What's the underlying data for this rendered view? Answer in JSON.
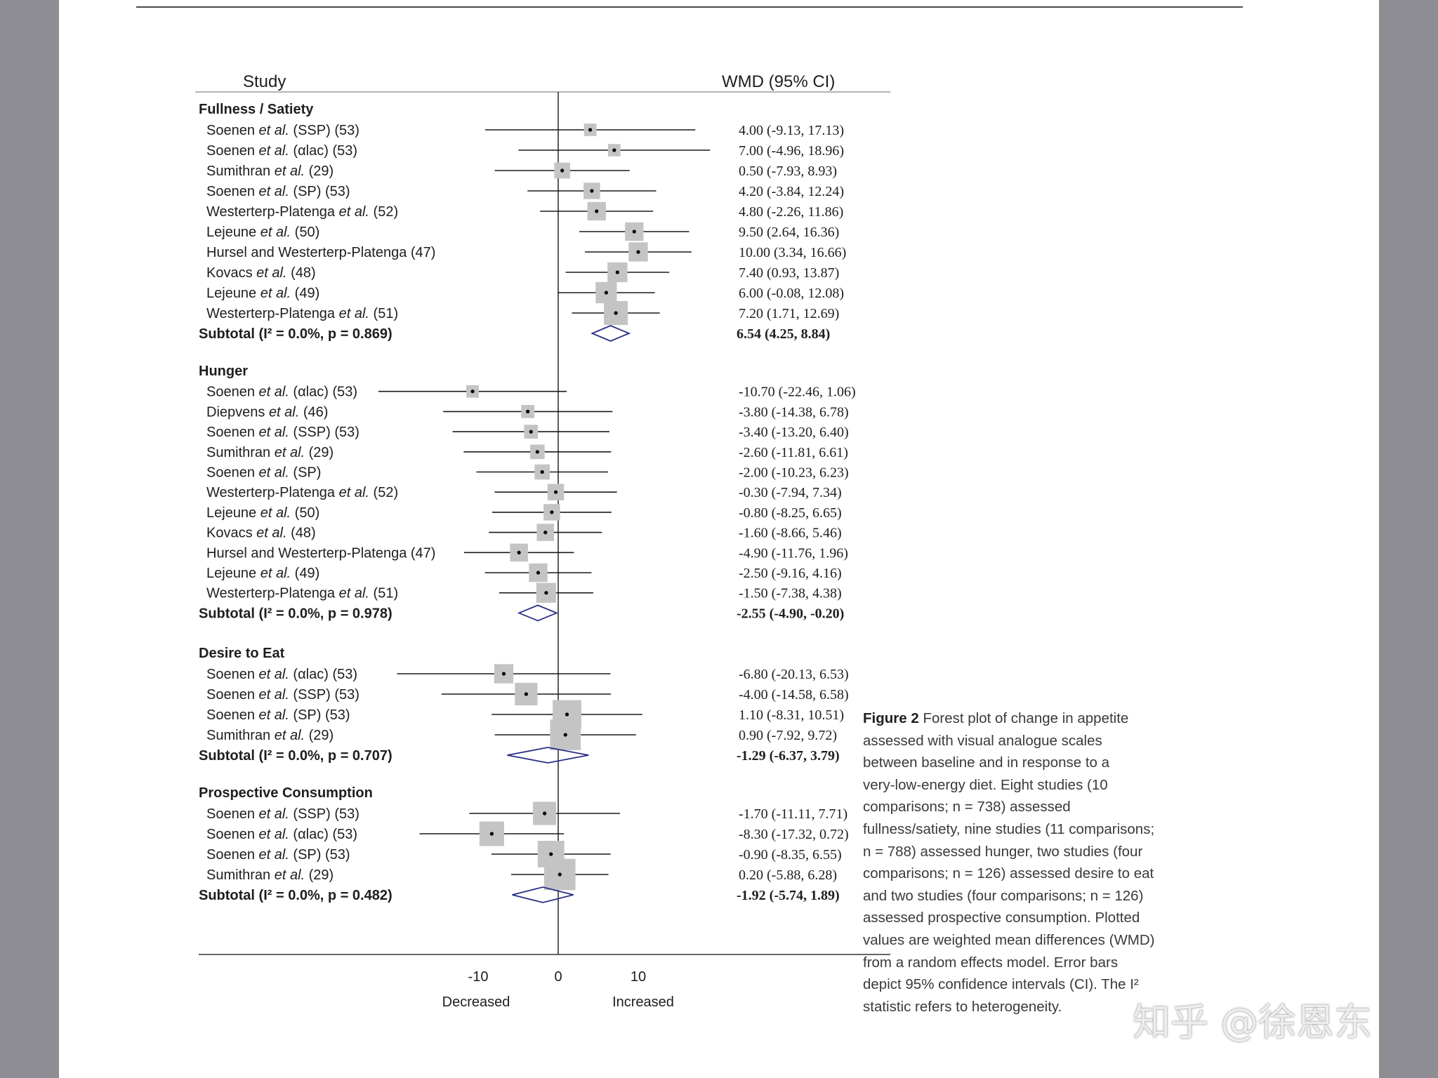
{
  "chart_data": {
    "type": "forest",
    "header_study": "Study",
    "header_effect": "WMD (95% CI)",
    "xlim": [
      -23,
      19
    ],
    "x_ticks": [
      -10,
      0,
      10
    ],
    "x_tick_labels": [
      "-10",
      "0",
      "10"
    ],
    "left_label": "Decreased",
    "right_label": "Increased",
    "groups": [
      {
        "name": "Fullness / Satiety",
        "studies": [
          {
            "author": "Soenen",
            "etal": true,
            "tail": "(SSP) (53)",
            "est": 4.0,
            "lo": -9.13,
            "hi": 17.13,
            "label": "4.00 (-9.13, 17.13)",
            "weight": 0.12
          },
          {
            "author": "Soenen",
            "etal": true,
            "tail": "(αlac) (53)",
            "est": 7.0,
            "lo": -4.96,
            "hi": 18.96,
            "label": "7.00 (-4.96, 18.96)",
            "weight": 0.12
          },
          {
            "author": "Sumithran",
            "etal": true,
            "tail": "(29)",
            "est": 0.5,
            "lo": -7.93,
            "hi": 8.93,
            "label": "0.50 (-7.93, 8.93)",
            "weight": 0.22
          },
          {
            "author": "Soenen",
            "etal": true,
            "tail": "(SP) (53)",
            "est": 4.2,
            "lo": -3.84,
            "hi": 12.24,
            "label": "4.20 (-3.84, 12.24)",
            "weight": 0.24
          },
          {
            "author": "Westerterp-Platenga",
            "etal": true,
            "tail": "(52)",
            "est": 4.8,
            "lo": -2.26,
            "hi": 11.86,
            "label": "4.80 (-2.26, 11.86)",
            "weight": 0.3
          },
          {
            "author": "Lejeune",
            "etal": true,
            "tail": "(50)",
            "est": 9.5,
            "lo": 2.64,
            "hi": 16.36,
            "label": "9.50 (2.64, 16.36)",
            "weight": 0.3
          },
          {
            "author": "Hursel and Westerterp-Platenga",
            "etal": false,
            "tail": "(47)",
            "est": 10.0,
            "lo": 3.34,
            "hi": 16.66,
            "label": "10.00 (3.34, 16.66)",
            "weight": 0.32
          },
          {
            "author": "Kovacs",
            "etal": true,
            "tail": "(48)",
            "est": 7.4,
            "lo": 0.93,
            "hi": 13.87,
            "label": "7.40 (0.93, 13.87)",
            "weight": 0.34
          },
          {
            "author": "Lejeune",
            "etal": true,
            "tail": "(49)",
            "est": 6.0,
            "lo": -0.08,
            "hi": 12.08,
            "label": "6.00 (-0.08, 12.08)",
            "weight": 0.38
          },
          {
            "author": "Westerterp-Platenga",
            "etal": true,
            "tail": "(51)",
            "est": 7.2,
            "lo": 1.71,
            "hi": 12.69,
            "label": "7.20 (1.71, 12.69)",
            "weight": 0.46
          }
        ],
        "subtotal": {
          "text": "Subtotal (I² = 0.0%, p = 0.869)",
          "est": 6.54,
          "lo": 4.25,
          "hi": 8.84,
          "label": "6.54 (4.25, 8.84)"
        }
      },
      {
        "name": "Hunger",
        "studies": [
          {
            "author": "Soenen",
            "etal": true,
            "tail": "(αlac) (53)",
            "est": -10.7,
            "lo": -22.46,
            "hi": 1.06,
            "label": "-10.70 (-22.46, 1.06)",
            "weight": 0.12
          },
          {
            "author": "Diepvens",
            "etal": true,
            "tail": "(46)",
            "est": -3.8,
            "lo": -14.38,
            "hi": 6.78,
            "label": "-3.80 (-14.38, 6.78)",
            "weight": 0.14
          },
          {
            "author": "Soenen",
            "etal": true,
            "tail": "(SSP) (53)",
            "est": -3.4,
            "lo": -13.2,
            "hi": 6.4,
            "label": "-3.40 (-13.20, 6.40)",
            "weight": 0.16
          },
          {
            "author": "Sumithran",
            "etal": true,
            "tail": "(29)",
            "est": -2.6,
            "lo": -11.81,
            "hi": 6.61,
            "label": "-2.60 (-11.81, 6.61)",
            "weight": 0.18
          },
          {
            "author": "Soenen",
            "etal": true,
            "tail": "(SP)",
            "est": -2.0,
            "lo": -10.23,
            "hi": 6.23,
            "label": "-2.00 (-10.23, 6.23)",
            "weight": 0.2
          },
          {
            "author": "Westerterp-Platenga",
            "etal": true,
            "tail": "(52)",
            "est": -0.3,
            "lo": -7.94,
            "hi": 7.34,
            "label": "-0.30 (-7.94, 7.34)",
            "weight": 0.24
          },
          {
            "author": "Lejeune",
            "etal": true,
            "tail": "(50)",
            "est": -0.8,
            "lo": -8.25,
            "hi": 6.65,
            "label": "-0.80 (-8.25, 6.65)",
            "weight": 0.24
          },
          {
            "author": "Kovacs",
            "etal": true,
            "tail": "(48)",
            "est": -1.6,
            "lo": -8.66,
            "hi": 5.46,
            "label": "-1.60 (-8.66, 5.46)",
            "weight": 0.26
          },
          {
            "author": "Hursel and Westerterp-Platenga",
            "etal": false,
            "tail": "(47)",
            "est": -4.9,
            "lo": -11.76,
            "hi": 1.96,
            "label": "-4.90 (-11.76, 1.96)",
            "weight": 0.28
          },
          {
            "author": "Lejeune",
            "etal": true,
            "tail": "(49)",
            "est": -2.5,
            "lo": -9.16,
            "hi": 4.16,
            "label": "-2.50 (-9.16, 4.16)",
            "weight": 0.3
          },
          {
            "author": "Westerterp-Platenga",
            "etal": true,
            "tail": "(51)",
            "est": -1.5,
            "lo": -7.38,
            "hi": 4.38,
            "label": "-1.50 (-7.38, 4.38)",
            "weight": 0.34
          }
        ],
        "subtotal": {
          "text": "Subtotal (I² = 0.0%, p = 0.978)",
          "est": -2.55,
          "lo": -4.9,
          "hi": -0.2,
          "label": "-2.55 (-4.90, -0.20)"
        }
      },
      {
        "name": "Desire to Eat",
        "studies": [
          {
            "author": "Soenen",
            "etal": true,
            "tail": "(αlac) (53)",
            "est": -6.8,
            "lo": -20.13,
            "hi": 6.53,
            "label": "-6.80 (-20.13, 6.53)",
            "weight": 0.32
          },
          {
            "author": "Soenen",
            "etal": true,
            "tail": "(SSP) (53)",
            "est": -4.0,
            "lo": -14.58,
            "hi": 6.58,
            "label": "-4.00 (-14.58, 6.58)",
            "weight": 0.42
          },
          {
            "author": "Soenen",
            "etal": true,
            "tail": "(SP) (53)",
            "est": 1.1,
            "lo": -8.31,
            "hi": 10.51,
            "label": "1.10 (-8.31, 10.51)",
            "weight": 0.6
          },
          {
            "author": "Sumithran",
            "etal": true,
            "tail": "(29)",
            "est": 0.9,
            "lo": -7.92,
            "hi": 9.72,
            "label": "0.90 (-7.92, 9.72)",
            "weight": 0.66
          }
        ],
        "subtotal": {
          "text": "Subtotal (I² = 0.0%, p = 0.707)",
          "est": -1.29,
          "lo": -6.37,
          "hi": 3.79,
          "label": "-1.29 (-6.37, 3.79)"
        }
      },
      {
        "name": "Prospective Consumption",
        "studies": [
          {
            "author": "Soenen",
            "etal": true,
            "tail": "(SSP) (53)",
            "est": -1.7,
            "lo": -11.11,
            "hi": 7.71,
            "label": "-1.70 (-11.11, 7.71)",
            "weight": 0.44
          },
          {
            "author": "Soenen",
            "etal": true,
            "tail": "(αlac) (53)",
            "est": -8.3,
            "lo": -17.32,
            "hi": 0.72,
            "label": "-8.30 (-17.32, 0.72)",
            "weight": 0.48
          },
          {
            "author": "Soenen",
            "etal": true,
            "tail": "(SP) (53)",
            "est": -0.9,
            "lo": -8.35,
            "hi": 6.55,
            "label": "-0.90 (-8.35, 6.55)",
            "weight": 0.54
          },
          {
            "author": "Sumithran",
            "etal": true,
            "tail": "(29)",
            "est": 0.2,
            "lo": -5.88,
            "hi": 6.28,
            "label": "0.20 (-5.88, 6.28)",
            "weight": 0.68
          }
        ],
        "subtotal": {
          "text": "Subtotal (I² = 0.0%, p = 0.482)",
          "est": -1.92,
          "lo": -5.74,
          "hi": 1.89,
          "label": "-1.92 (-5.74, 1.89)"
        }
      }
    ],
    "colors": {
      "box": "#c4c4c4",
      "line": "#1a1a1a",
      "diamond": "#2a2f86",
      "text": "#1e1e1e"
    }
  },
  "caption": {
    "figure_label": "Figure 2",
    "lines": [
      "Forest plot of change in appetite",
      "assessed with visual analogue scales",
      "between baseline and in response to a",
      "very-low-energy diet. Eight studies (10",
      "comparisons; n = 738) assessed",
      "fullness/satiety, nine studies (11 comparisons;",
      "n = 788) assessed hunger, two studies (four",
      "comparisons; n = 126) assessed desire to eat",
      "and two studies (four comparisons; n = 126)",
      "assessed prospective consumption. Plotted",
      "values are weighted mean differences (WMD)",
      "from a random effects model. Error bars",
      "depict 95% confidence intervals (CI). The I²",
      "statistic refers to heterogeneity."
    ]
  },
  "watermark": "知乎 @徐恩东"
}
